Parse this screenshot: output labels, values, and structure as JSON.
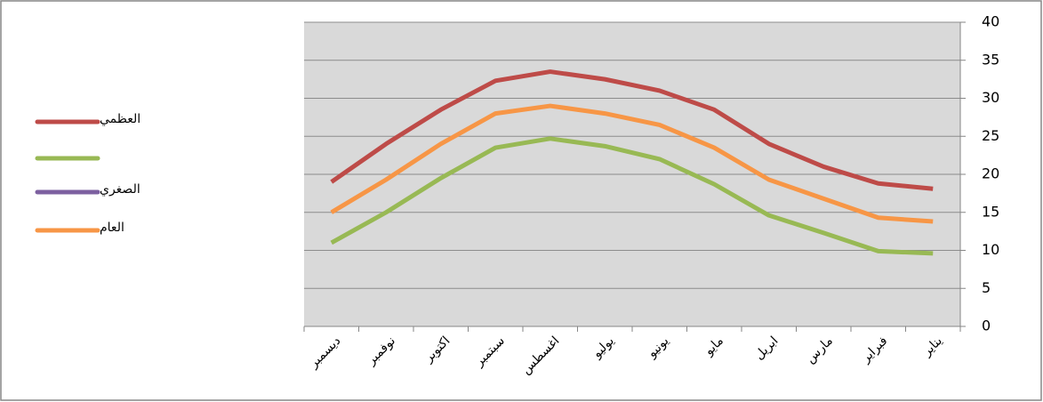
{
  "chart_data": {
    "type": "line",
    "categories": [
      "ديسمبر",
      "نوفمبر",
      "اكتوبر",
      "سبتمبر",
      "اغسطس",
      "يوليو",
      "يونيو",
      "مايو",
      "ابريل",
      "مارس",
      "فبراير",
      "يناير"
    ],
    "series": [
      {
        "name": "العظمي",
        "color": "#be4b48",
        "values": [
          19,
          24,
          28.5,
          32.3,
          33.5,
          32.5,
          31,
          28.5,
          24,
          21,
          18.8,
          18.1
        ]
      },
      {
        "name": null,
        "color": "#98b954",
        "values": [
          11,
          15,
          19.5,
          23.5,
          24.7,
          23.7,
          22,
          18.7,
          14.6,
          12.3,
          9.9,
          9.6
        ]
      },
      {
        "name": "الصغري",
        "color": "#7d60a0",
        "values": [
          null,
          null,
          null,
          null,
          null,
          null,
          null,
          null,
          null,
          null,
          null,
          null
        ]
      },
      {
        "name": "العام",
        "color": "#f79646",
        "values": [
          15,
          19.3,
          24,
          28,
          29,
          28,
          26.5,
          23.5,
          19.3,
          16.8,
          14.3,
          13.8
        ]
      }
    ],
    "ylim": [
      0,
      40
    ],
    "yticks": [
      0,
      5,
      10,
      15,
      20,
      25,
      30,
      35,
      40
    ],
    "grid": true,
    "legend": "left",
    "y_axis_side": "right"
  }
}
